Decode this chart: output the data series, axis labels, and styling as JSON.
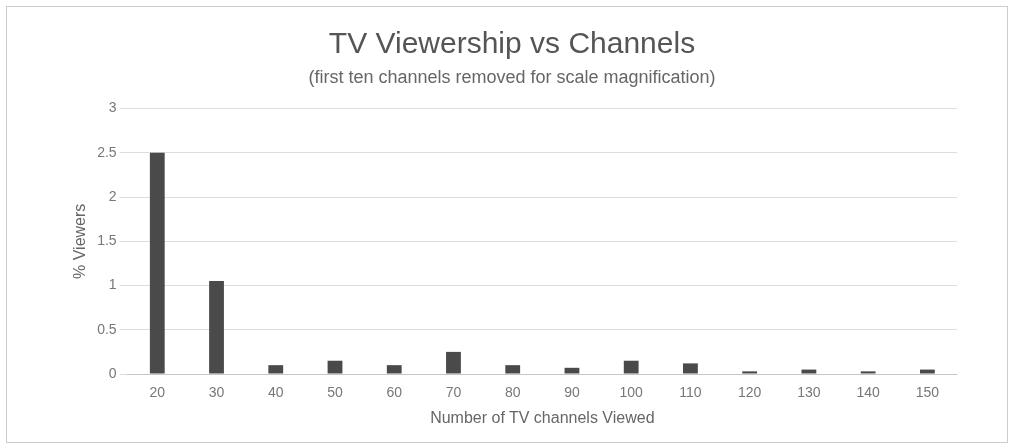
{
  "chart_data": {
    "type": "bar",
    "title": "TV Viewership vs Channels",
    "subtitle": "(first ten channels removed for scale magnification)",
    "xlabel": "Number of TV channels Viewed",
    "ylabel": "% Viewers",
    "categories": [
      "20",
      "30",
      "40",
      "50",
      "60",
      "70",
      "80",
      "90",
      "100",
      "110",
      "120",
      "130",
      "140",
      "150"
    ],
    "values": [
      2.5,
      1.05,
      0.1,
      0.15,
      0.1,
      0.25,
      0.1,
      0.07,
      0.15,
      0.12,
      0.03,
      0.05,
      0.03,
      0.05
    ],
    "color": "#4a4a4a",
    "ylim": [
      0,
      3
    ],
    "yticks": [
      0,
      0.5,
      1,
      1.5,
      2,
      2.5,
      3
    ],
    "grid": "y"
  }
}
